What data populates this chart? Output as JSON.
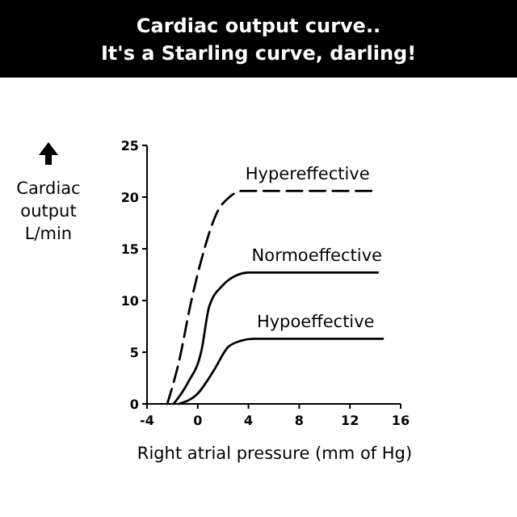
{
  "chart_data": {
    "type": "line",
    "title": "Cardiac output curve..\nIt's a Starling curve, darling!",
    "xlabel": "Right atrial pressure (mm of Hg)",
    "ylabel": "Cardiac\noutput\nL/min",
    "xlim": [
      -4,
      16
    ],
    "xticks": [
      -4,
      0,
      4,
      8,
      12,
      16
    ],
    "ylim": [
      0,
      25
    ],
    "yticks": [
      0,
      5,
      10,
      15,
      20,
      25
    ],
    "series": [
      {
        "name": "Hypereffective",
        "color": "#000000",
        "line_style": "dashed",
        "x": [
          -2.4,
          -1.5,
          -0.5,
          0.3,
          1.6,
          2.5,
          3.5,
          13.7
        ],
        "values": [
          0,
          4,
          10,
          14,
          18.7,
          20,
          20.6,
          20.6
        ]
      },
      {
        "name": "Normoeffective",
        "color": "#000000",
        "line_style": "solid",
        "x": [
          -1.9,
          -0.8,
          0.3,
          0.9,
          2,
          3,
          4,
          14.2
        ],
        "values": [
          0,
          2,
          5.2,
          9.4,
          11.5,
          12.4,
          12.7,
          12.7
        ]
      },
      {
        "name": "Hypoeffective",
        "color": "#000000",
        "line_style": "solid",
        "x": [
          -1.5,
          0,
          1.2,
          2.4,
          3.4,
          4.4,
          14.6
        ],
        "values": [
          0,
          1,
          3.1,
          5.5,
          6.1,
          6.3,
          6.3
        ]
      }
    ]
  }
}
